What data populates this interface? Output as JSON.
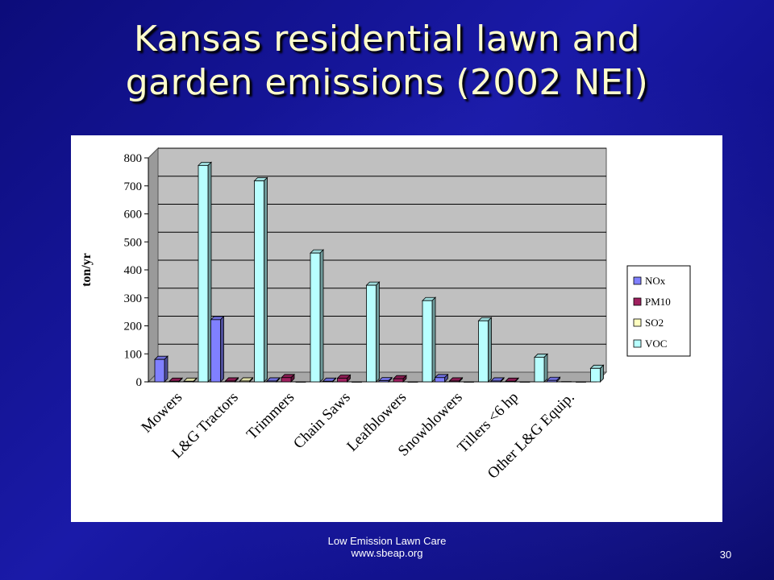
{
  "slide": {
    "title_line1": "Kansas residential lawn and",
    "title_line2": "garden emissions (2002 NEI)",
    "footer_line1": "Low Emission Lawn Care",
    "footer_line2": "www.sbeap.org",
    "page_number": "30"
  },
  "chart_data": {
    "type": "bar",
    "title": "",
    "xlabel": "",
    "ylabel": "ton/yr",
    "ylim": [
      0,
      800
    ],
    "yticks": [
      "0",
      "100",
      "200",
      "300",
      "400",
      "500",
      "600",
      "700",
      "800"
    ],
    "grid": true,
    "legend_position": "right",
    "categories": [
      "Mowers",
      "L&G Tractors",
      "Trimmers",
      "Chain Saws",
      "Leafblowers",
      "Snowblowers",
      "Tillers <6 hp",
      "Other L&G Equip."
    ],
    "series": [
      {
        "name": "NOx",
        "color": "#8080ff",
        "values": [
          80,
          222,
          3,
          2,
          4,
          15,
          3,
          5
        ]
      },
      {
        "name": "PM10",
        "color": "#a0205f",
        "values": [
          2,
          3,
          15,
          13,
          11,
          3,
          2,
          1
        ]
      },
      {
        "name": "SO2",
        "color": "#ffffc0",
        "values": [
          2,
          3,
          0,
          0,
          0,
          0,
          0,
          0
        ]
      },
      {
        "name": "VOC",
        "color": "#b8ffff",
        "values": [
          773,
          718,
          460,
          345,
          290,
          218,
          88,
          48
        ]
      }
    ]
  }
}
